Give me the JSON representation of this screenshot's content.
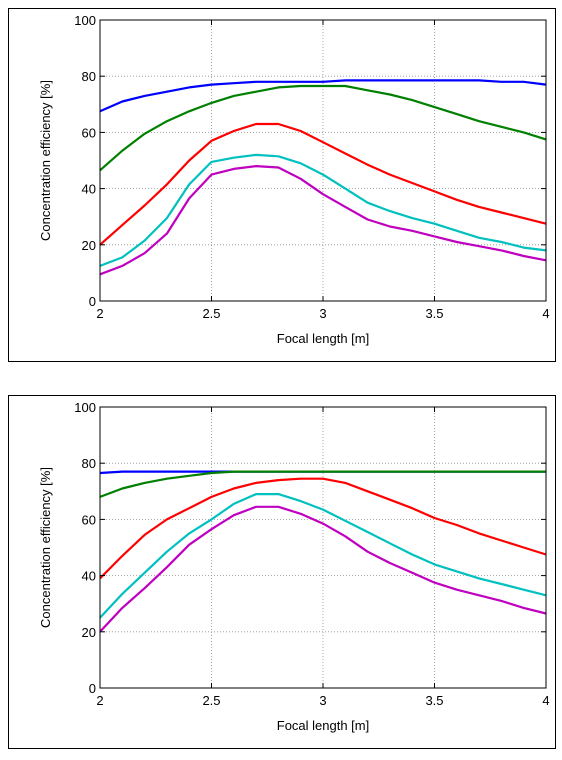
{
  "chart_data": [
    {
      "type": "line",
      "xlabel": "Focal length [m]",
      "ylabel": "Concentration efficiency [%]",
      "xlim": [
        2,
        4
      ],
      "ylim": [
        0,
        100
      ],
      "xticks": [
        2,
        2.5,
        3,
        3.5,
        4
      ],
      "yticks": [
        0,
        20,
        40,
        60,
        80,
        100
      ],
      "grid": "dotted",
      "series": [
        {
          "color": "#0000ff",
          "x": [
            2,
            2.1,
            2.2,
            2.3,
            2.4,
            2.5,
            2.6,
            2.7,
            2.8,
            2.9,
            3,
            3.1,
            3.2,
            3.3,
            3.4,
            3.5,
            3.6,
            3.7,
            3.8,
            3.9,
            4
          ],
          "y": [
            67.5,
            71,
            73,
            74.5,
            76,
            77,
            77.5,
            78,
            78,
            78,
            78,
            78.5,
            78.5,
            78.5,
            78.5,
            78.5,
            78.5,
            78.5,
            78,
            78,
            77
          ]
        },
        {
          "color": "#008000",
          "x": [
            2,
            2.1,
            2.2,
            2.3,
            2.4,
            2.5,
            2.6,
            2.7,
            2.8,
            2.9,
            3,
            3.1,
            3.2,
            3.3,
            3.4,
            3.5,
            3.6,
            3.7,
            3.8,
            3.9,
            4
          ],
          "y": [
            46.5,
            53.5,
            59.5,
            64,
            67.5,
            70.5,
            73,
            74.5,
            76,
            76.5,
            76.5,
            76.5,
            75,
            73.5,
            71.5,
            69,
            66.5,
            64,
            62,
            60,
            57.5
          ]
        },
        {
          "color": "#ff0000",
          "x": [
            2,
            2.1,
            2.2,
            2.3,
            2.4,
            2.5,
            2.6,
            2.7,
            2.8,
            2.9,
            3,
            3.1,
            3.2,
            3.3,
            3.4,
            3.5,
            3.6,
            3.7,
            3.8,
            3.9,
            4
          ],
          "y": [
            20,
            27,
            34,
            41.5,
            50,
            57,
            60.5,
            63,
            63,
            60.5,
            56.5,
            52.5,
            48.5,
            45,
            42,
            39,
            36,
            33.5,
            31.5,
            29.5,
            27.5
          ]
        },
        {
          "color": "#00c0c0",
          "x": [
            2,
            2.1,
            2.2,
            2.3,
            2.4,
            2.5,
            2.6,
            2.7,
            2.8,
            2.9,
            3,
            3.1,
            3.2,
            3.3,
            3.4,
            3.5,
            3.6,
            3.7,
            3.8,
            3.9,
            4
          ],
          "y": [
            12.5,
            15.5,
            21.5,
            29.5,
            41.5,
            49.5,
            51,
            52,
            51.5,
            49,
            45,
            40,
            35,
            32,
            29.5,
            27.5,
            25,
            22.5,
            21,
            19,
            18
          ]
        },
        {
          "color": "#c000c0",
          "x": [
            2,
            2.1,
            2.2,
            2.3,
            2.4,
            2.5,
            2.6,
            2.7,
            2.8,
            2.9,
            3,
            3.1,
            3.2,
            3.3,
            3.4,
            3.5,
            3.6,
            3.7,
            3.8,
            3.9,
            4
          ],
          "y": [
            9.5,
            12.5,
            17,
            24,
            36.5,
            45,
            47,
            48,
            47.5,
            43.5,
            38,
            33.5,
            29,
            26.5,
            25,
            23,
            21,
            19.5,
            18,
            16,
            14.5
          ]
        }
      ]
    },
    {
      "type": "line",
      "xlabel": "Focal length [m]",
      "ylabel": "Concentration efficiency [%]",
      "xlim": [
        2,
        4
      ],
      "ylim": [
        0,
        100
      ],
      "xticks": [
        2,
        2.5,
        3,
        3.5,
        4
      ],
      "yticks": [
        0,
        20,
        40,
        60,
        80,
        100
      ],
      "grid": "dotted",
      "series": [
        {
          "color": "#0000ff",
          "x": [
            2,
            2.1,
            2.2,
            2.3,
            2.4,
            2.5,
            2.6,
            2.7,
            2.8,
            2.9,
            3,
            3.1,
            3.2,
            3.3,
            3.4,
            3.5,
            3.6,
            3.7,
            3.8,
            3.9,
            4
          ],
          "y": [
            76.5,
            77,
            77,
            77,
            77,
            77,
            77,
            77,
            77,
            77,
            77,
            77,
            77,
            77,
            77,
            77,
            77,
            77,
            77,
            77,
            77
          ]
        },
        {
          "color": "#008000",
          "x": [
            2,
            2.1,
            2.2,
            2.3,
            2.4,
            2.5,
            2.6,
            2.7,
            2.8,
            2.9,
            3,
            3.1,
            3.2,
            3.3,
            3.4,
            3.5,
            3.6,
            3.7,
            3.8,
            3.9,
            4
          ],
          "y": [
            68,
            71,
            73,
            74.5,
            75.5,
            76.5,
            77,
            77,
            77,
            77,
            77,
            77,
            77,
            77,
            77,
            77,
            77,
            77,
            77,
            77,
            77
          ]
        },
        {
          "color": "#ff0000",
          "x": [
            2,
            2.1,
            2.2,
            2.3,
            2.4,
            2.5,
            2.6,
            2.7,
            2.8,
            2.9,
            3,
            3.1,
            3.2,
            3.3,
            3.4,
            3.5,
            3.6,
            3.7,
            3.8,
            3.9,
            4
          ],
          "y": [
            39,
            47,
            54.5,
            60,
            64,
            68,
            71,
            73,
            74,
            74.5,
            74.5,
            73,
            70,
            67,
            64,
            60.5,
            58,
            55,
            52.5,
            50,
            47.5
          ]
        },
        {
          "color": "#00c0c0",
          "x": [
            2,
            2.1,
            2.2,
            2.3,
            2.4,
            2.5,
            2.6,
            2.7,
            2.8,
            2.9,
            3,
            3.1,
            3.2,
            3.3,
            3.4,
            3.5,
            3.6,
            3.7,
            3.8,
            3.9,
            4
          ],
          "y": [
            25,
            33.5,
            41,
            48.5,
            55,
            60,
            65.5,
            69,
            69,
            66.5,
            63.5,
            59.5,
            55.5,
            51.5,
            47.5,
            44,
            41.5,
            39,
            37,
            35,
            33
          ]
        },
        {
          "color": "#c000c0",
          "x": [
            2,
            2.1,
            2.2,
            2.3,
            2.4,
            2.5,
            2.6,
            2.7,
            2.8,
            2.9,
            3,
            3.1,
            3.2,
            3.3,
            3.4,
            3.5,
            3.6,
            3.7,
            3.8,
            3.9,
            4
          ],
          "y": [
            20,
            28.5,
            35.5,
            43,
            51,
            56.5,
            61.5,
            64.5,
            64.5,
            62,
            58.5,
            54,
            48.5,
            44.5,
            41,
            37.5,
            35,
            33,
            31,
            28.5,
            26.5
          ]
        }
      ]
    }
  ]
}
